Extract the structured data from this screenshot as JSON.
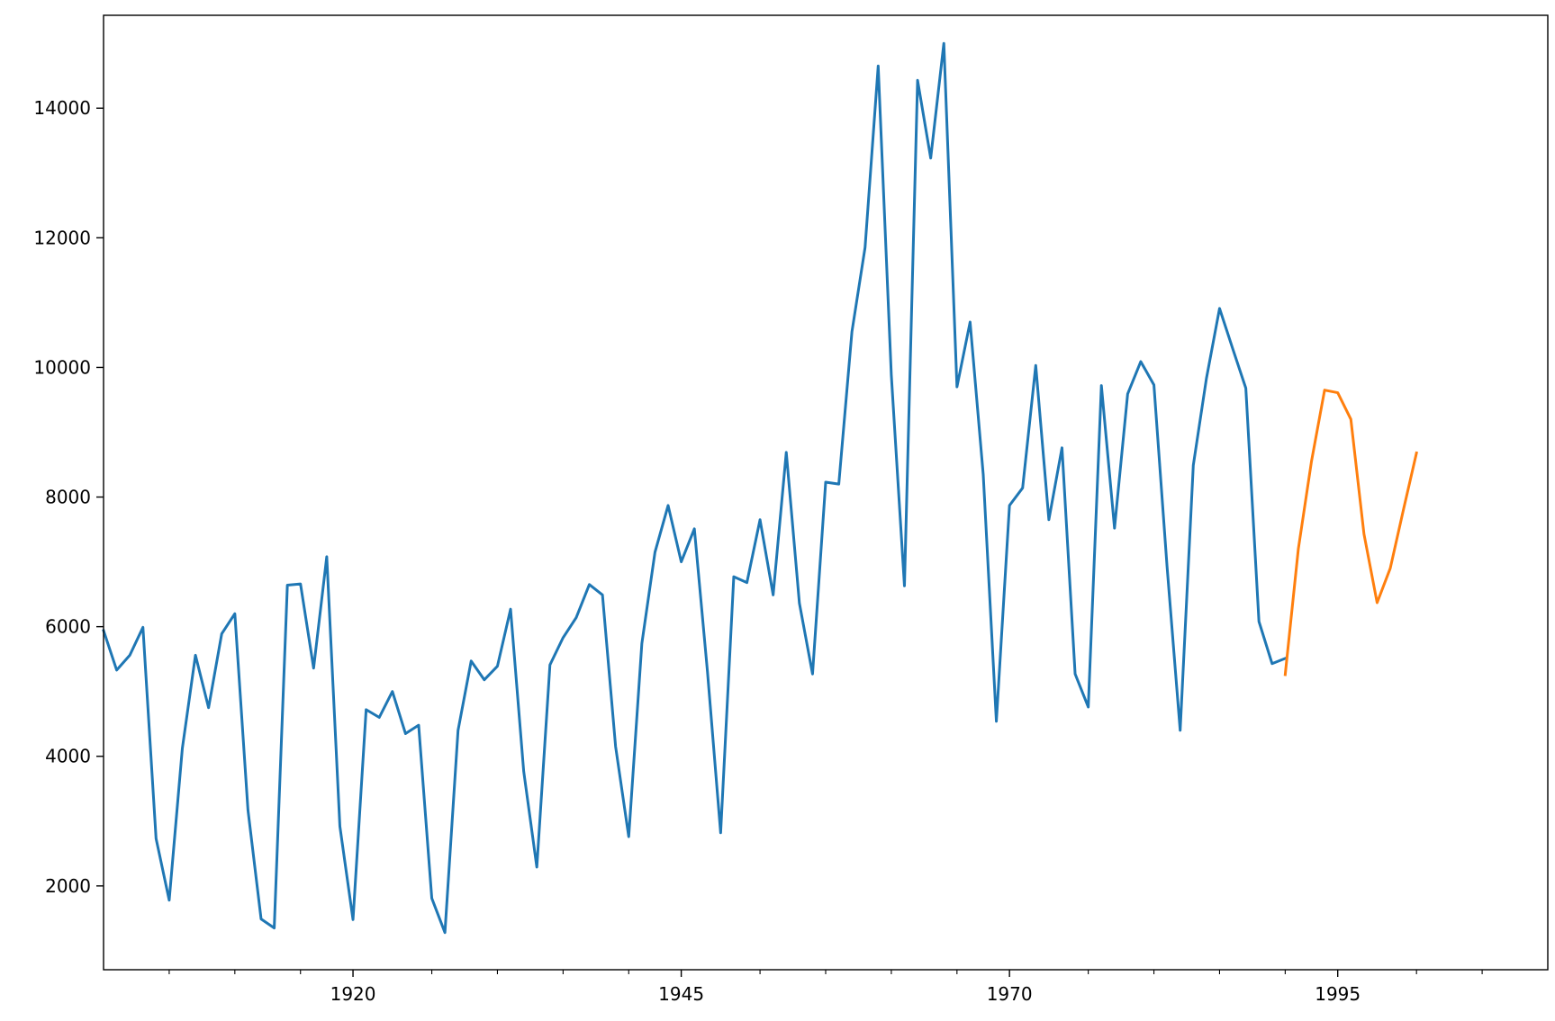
{
  "chart_data": {
    "type": "line",
    "title": "",
    "xlabel": "",
    "ylabel": "",
    "xlim": [
      1901,
      2011
    ],
    "ylim": [
      707,
      15433
    ],
    "x_ticks": [
      {
        "value": 1920,
        "label": "1920"
      },
      {
        "value": 1945,
        "label": "1945"
      },
      {
        "value": 1970,
        "label": "1970"
      },
      {
        "value": 1995,
        "label": "1995"
      }
    ],
    "x_minor_ticks": [
      1906,
      1911,
      1916,
      1926,
      1931,
      1936,
      1941,
      1951,
      1956,
      1961,
      1966,
      1976,
      1981,
      1986,
      1991,
      2001,
      2006
    ],
    "y_ticks": [
      {
        "value": 2000,
        "label": "2000"
      },
      {
        "value": 4000,
        "label": "4000"
      },
      {
        "value": 6000,
        "label": "6000"
      },
      {
        "value": 8000,
        "label": "8000"
      },
      {
        "value": 10000,
        "label": "10000"
      },
      {
        "value": 12000,
        "label": "12000"
      },
      {
        "value": 14000,
        "label": "14000"
      }
    ],
    "grid": false,
    "series": [
      {
        "color": "#1f77b4",
        "x": [
          1901,
          1902,
          1903,
          1904,
          1905,
          1906,
          1907,
          1908,
          1909,
          1910,
          1911,
          1912,
          1913,
          1914,
          1915,
          1916,
          1917,
          1918,
          1919,
          1920,
          1921,
          1922,
          1923,
          1924,
          1925,
          1926,
          1927,
          1928,
          1929,
          1930,
          1931,
          1932,
          1933,
          1934,
          1935,
          1936,
          1937,
          1938,
          1939,
          1940,
          1941,
          1942,
          1943,
          1944,
          1945,
          1946,
          1947,
          1948,
          1949,
          1950,
          1951,
          1952,
          1953,
          1954,
          1955,
          1956,
          1957,
          1958,
          1959,
          1960,
          1961,
          1962,
          1963,
          1964,
          1965,
          1966,
          1967,
          1968,
          1969,
          1970,
          1971,
          1972,
          1973,
          1974,
          1975,
          1976,
          1977,
          1978,
          1979,
          1980,
          1981,
          1982,
          1983,
          1984,
          1985,
          1986,
          1987,
          1988,
          1989,
          1990,
          1991
        ],
        "y": [
          5940,
          5330,
          5560,
          5990,
          2730,
          1780,
          4120,
          5560,
          4750,
          5890,
          6200,
          3170,
          1490,
          1350,
          6640,
          6660,
          5360,
          7080,
          2920,
          1480,
          4720,
          4600,
          5000,
          4350,
          4480,
          1810,
          1280,
          4400,
          5470,
          5180,
          5390,
          6270,
          3770,
          2290,
          5410,
          5830,
          6140,
          6650,
          6490,
          4150,
          2760,
          5740,
          7150,
          7870,
          7000,
          7510,
          5300,
          2820,
          6770,
          6680,
          7650,
          6490,
          8690,
          6360,
          5270,
          8230,
          8200,
          10550,
          11850,
          14650,
          9880,
          6630,
          14430,
          13230,
          15000,
          9700,
          10700,
          8350,
          4540,
          7870,
          8140,
          10030,
          7650,
          8760,
          5270,
          4760,
          9720,
          7520,
          9590,
          10090,
          9730,
          6930,
          4400,
          8490,
          9830,
          10910,
          10290,
          9680,
          6080,
          5430,
          5510
        ]
      },
      {
        "color": "#ff7f0e",
        "x": [
          1991,
          1992,
          1993,
          1994,
          1995,
          1996,
          1997,
          1998,
          1999,
          2000,
          2001
        ],
        "y": [
          5260,
          7200,
          8550,
          9650,
          9610,
          9200,
          7430,
          6370,
          6900,
          7800,
          8680
        ]
      }
    ]
  }
}
